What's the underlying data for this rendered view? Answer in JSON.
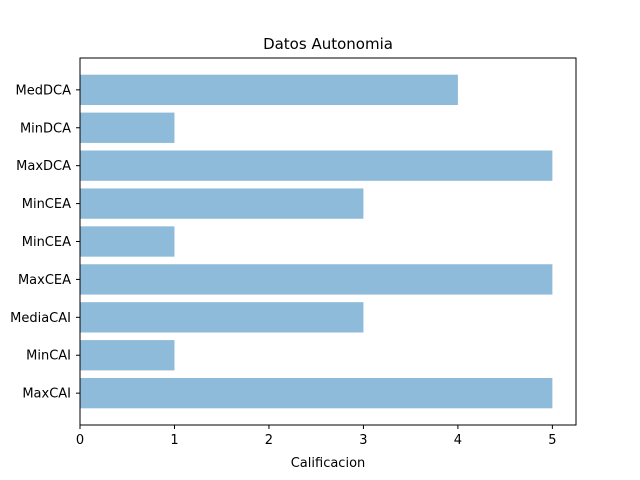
{
  "chart_data": {
    "type": "bar",
    "orientation": "horizontal",
    "title": "Datos Autonomia",
    "xlabel": "Calificacion",
    "ylabel": "",
    "categories": [
      "MaxCAI",
      "MinCAI",
      "MediaCAI",
      "MaxCEA",
      "MinCEA",
      "MinCEA",
      "MaxDCA",
      "MinDCA",
      "MedDCA"
    ],
    "values": [
      5,
      1,
      3,
      5,
      1,
      3,
      5,
      1,
      4
    ],
    "xlim": [
      0,
      5.25
    ],
    "xticks": [
      0,
      1,
      2,
      3,
      4,
      5
    ],
    "grid": false,
    "bar_color": "#8fbbda"
  }
}
